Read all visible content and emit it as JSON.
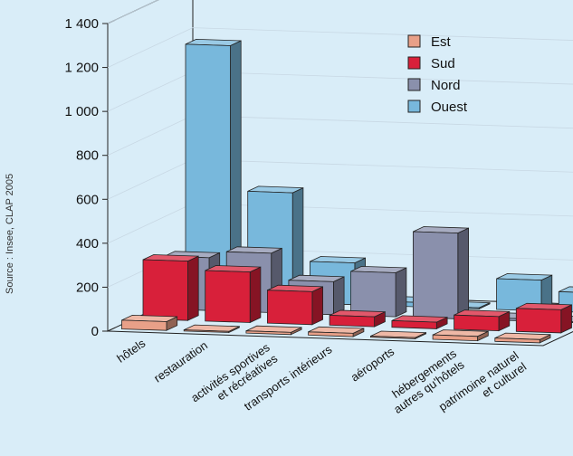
{
  "chart_data": {
    "type": "bar",
    "three_d": true,
    "categories": [
      [
        "hôtels"
      ],
      [
        "restauration"
      ],
      [
        "activités sportives",
        "et récréatives"
      ],
      [
        "transports intérieurs"
      ],
      [
        "aéroports"
      ],
      [
        "hébergements",
        "autres qu'hôtels"
      ],
      [
        "patrimoine naturel",
        "et culturel"
      ]
    ],
    "series": [
      {
        "name": "Est",
        "color": "#e8a088",
        "values": [
          40,
          5,
          10,
          15,
          5,
          20,
          15
        ]
      },
      {
        "name": "Sud",
        "color": "#d8203a",
        "values": [
          270,
          230,
          150,
          45,
          30,
          65,
          105
        ]
      },
      {
        "name": "Nord",
        "color": "#8a90ac",
        "values": [
          240,
          270,
          150,
          200,
          390,
          10,
          5
        ]
      },
      {
        "name": "Ouest",
        "color": "#78b8dc",
        "values": [
          1160,
          500,
          190,
          20,
          5,
          140,
          90
        ]
      }
    ],
    "yticks": [
      "0",
      "200",
      "400",
      "600",
      "800",
      "1 000",
      "1 200",
      "1 400"
    ],
    "ylim": [
      0,
      1400
    ],
    "legend_position": "top-right",
    "source": "Source : Insee, CLAP 2005"
  }
}
